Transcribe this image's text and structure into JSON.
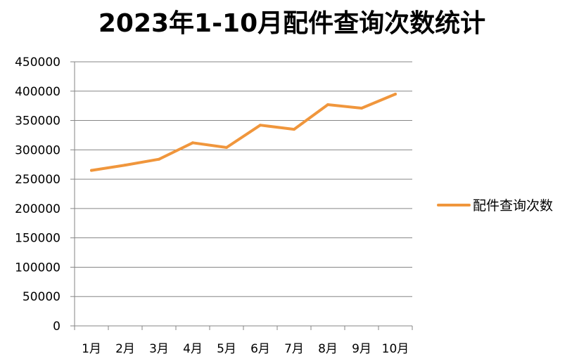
{
  "chart_data": {
    "type": "line",
    "title": "2023年1-10月配件查询次数统计",
    "xlabel": "",
    "ylabel": "",
    "categories": [
      "1月",
      "2月",
      "3月",
      "4月",
      "5月",
      "6月",
      "7月",
      "8月",
      "9月",
      "10月"
    ],
    "series": [
      {
        "name": "配件查询次数",
        "color": "#f0963c",
        "values": [
          265000,
          274000,
          284000,
          312000,
          304000,
          342000,
          335000,
          377000,
          371000,
          395000
        ]
      }
    ],
    "ylim": [
      0,
      450000
    ],
    "yticks": [
      "0",
      "50000",
      "100000",
      "150000",
      "200000",
      "250000",
      "300000",
      "350000",
      "400000",
      "450000"
    ],
    "grid": true,
    "legend": "right",
    "colors": {
      "gridline": "#868686",
      "axis": "#868686",
      "text": "#000000"
    }
  }
}
